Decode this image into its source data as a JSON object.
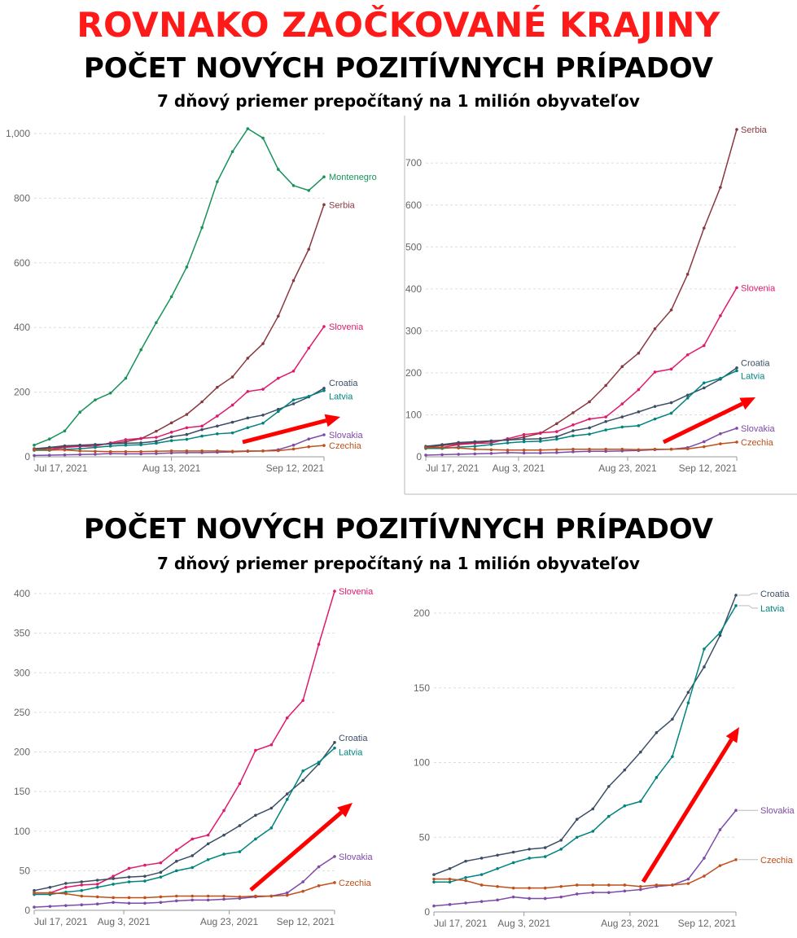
{
  "header": {
    "title_red": "ROVNAKO ZAOČKOVANÉ KRAJINY",
    "title": "POČET NOVÝCH POZITÍVNYCH PRÍPADOV",
    "subtitle": "7 dňový priemer prepočítaný na 1 milión obyvateľov"
  },
  "section2": {
    "title": "POČET NOVÝCH POZITÍVNYCH PRÍPADOV",
    "subtitle": "7 dňový priemer prepočítaný na 1 milión obyvateľov"
  },
  "colors": {
    "Montenegro": "#18925a",
    "Serbia": "#8a3840",
    "Slovenia": "#e0196c",
    "Croatia": "#3c4e66",
    "Latvia": "#00847e",
    "Slovakia": "#7d4aa8",
    "Czechia": "#c0501a",
    "arrow": "#ff0000",
    "grid": "#dddddd",
    "axis_text": "#666666"
  },
  "chart_data": [
    {
      "type": "line",
      "ylim": [
        0,
        1000
      ],
      "yticks": [
        0,
        200,
        400,
        600,
        800,
        1000
      ],
      "ytick_labels": [
        "0",
        "200",
        "400",
        "600",
        "800",
        "1,000"
      ],
      "xticks": [
        "2021-07-17",
        "2021-08-13",
        "2021-09-12"
      ],
      "xtick_labels": [
        "Jul 17, 2021",
        "Aug 13, 2021",
        "Sep 12, 2021"
      ],
      "grid": true,
      "legend": "line-end labels",
      "x": [
        "2021-07-17",
        "2021-07-20",
        "2021-07-23",
        "2021-07-26",
        "2021-07-29",
        "2021-08-01",
        "2021-08-04",
        "2021-08-07",
        "2021-08-10",
        "2021-08-13",
        "2021-08-16",
        "2021-08-19",
        "2021-08-22",
        "2021-08-25",
        "2021-08-28",
        "2021-08-31",
        "2021-09-03",
        "2021-09-06",
        "2021-09-09",
        "2021-09-12"
      ],
      "series": [
        {
          "name": "Montenegro",
          "values": [
            36,
            55,
            80,
            138,
            176,
            197,
            243,
            331,
            415,
            495,
            587,
            709,
            851,
            944,
            1015,
            986,
            889,
            839,
            824,
            866
          ]
        },
        {
          "name": "Serbia",
          "values": [
            22,
            27,
            31,
            34,
            37,
            40,
            47,
            56,
            79,
            105,
            131,
            170,
            215,
            247,
            305,
            350,
            435,
            545,
            642,
            780
          ]
        },
        {
          "name": "Slovenia",
          "values": [
            22,
            22,
            29,
            32,
            33,
            43,
            53,
            57,
            60,
            76,
            90,
            95,
            126,
            160,
            202,
            209,
            243,
            265,
            336,
            403
          ]
        },
        {
          "name": "Croatia",
          "values": [
            25,
            29,
            34,
            36,
            38,
            40,
            42,
            43,
            48,
            62,
            69,
            84,
            95,
            107,
            120,
            129,
            147,
            164,
            185,
            212
          ]
        },
        {
          "name": "Latvia",
          "values": [
            20,
            20,
            23,
            25,
            29,
            33,
            36,
            37,
            42,
            50,
            54,
            64,
            71,
            74,
            90,
            104,
            140,
            176,
            187,
            205
          ]
        },
        {
          "name": "Slovakia",
          "values": [
            4,
            5,
            6,
            7,
            8,
            10,
            9,
            9,
            10,
            12,
            13,
            13,
            14,
            15,
            17,
            18,
            22,
            36,
            55,
            68
          ]
        },
        {
          "name": "Czechia",
          "values": [
            22,
            22,
            21,
            18,
            17,
            16,
            16,
            16,
            17,
            18,
            18,
            18,
            18,
            17,
            18,
            18,
            19,
            24,
            31,
            35
          ]
        }
      ]
    },
    {
      "type": "line",
      "ylim": [
        0,
        780
      ],
      "yticks": [
        0,
        100,
        200,
        300,
        400,
        500,
        600,
        700
      ],
      "ytick_labels": [
        "0",
        "100",
        "200",
        "300",
        "400",
        "500",
        "600",
        "700"
      ],
      "xticks": [
        "2021-07-17",
        "2021-08-03",
        "2021-08-23",
        "2021-09-12"
      ],
      "xtick_labels": [
        "Jul 17, 2021",
        "Aug 3, 2021",
        "Aug 23, 2021",
        "Sep 12, 2021"
      ],
      "grid": true,
      "legend": "line-end labels",
      "x": [
        "2021-07-17",
        "2021-07-20",
        "2021-07-23",
        "2021-07-26",
        "2021-07-29",
        "2021-08-01",
        "2021-08-04",
        "2021-08-07",
        "2021-08-10",
        "2021-08-13",
        "2021-08-16",
        "2021-08-19",
        "2021-08-22",
        "2021-08-25",
        "2021-08-28",
        "2021-08-31",
        "2021-09-03",
        "2021-09-06",
        "2021-09-09",
        "2021-09-12"
      ],
      "series": [
        {
          "name": "Serbia",
          "values": [
            22,
            27,
            31,
            34,
            37,
            40,
            47,
            56,
            79,
            105,
            131,
            170,
            215,
            247,
            305,
            350,
            435,
            545,
            642,
            780
          ]
        },
        {
          "name": "Slovenia",
          "values": [
            22,
            22,
            29,
            32,
            33,
            43,
            53,
            57,
            60,
            76,
            90,
            95,
            126,
            160,
            202,
            209,
            243,
            265,
            336,
            403
          ]
        },
        {
          "name": "Croatia",
          "values": [
            25,
            29,
            34,
            36,
            38,
            40,
            42,
            43,
            48,
            62,
            69,
            84,
            95,
            107,
            120,
            129,
            147,
            164,
            185,
            212
          ]
        },
        {
          "name": "Latvia",
          "values": [
            20,
            20,
            23,
            25,
            29,
            33,
            36,
            37,
            42,
            50,
            54,
            64,
            71,
            74,
            90,
            104,
            140,
            176,
            187,
            205
          ]
        },
        {
          "name": "Slovakia",
          "values": [
            4,
            5,
            6,
            7,
            8,
            10,
            9,
            9,
            10,
            12,
            13,
            13,
            14,
            15,
            17,
            18,
            22,
            36,
            55,
            68
          ]
        },
        {
          "name": "Czechia",
          "values": [
            22,
            22,
            21,
            18,
            17,
            16,
            16,
            16,
            17,
            18,
            18,
            18,
            18,
            17,
            18,
            18,
            19,
            24,
            31,
            35
          ]
        }
      ]
    },
    {
      "type": "line",
      "ylim": [
        0,
        400
      ],
      "yticks": [
        0,
        50,
        100,
        150,
        200,
        250,
        300,
        350,
        400
      ],
      "ytick_labels": [
        "0",
        "50",
        "100",
        "150",
        "200",
        "250",
        "300",
        "350",
        "400"
      ],
      "xticks": [
        "2021-07-17",
        "2021-08-03",
        "2021-08-23",
        "2021-09-12"
      ],
      "xtick_labels": [
        "Jul 17, 2021",
        "Aug 3, 2021",
        "Aug 23, 2021",
        "Sep 12, 2021"
      ],
      "grid": true,
      "legend": "line-end labels",
      "x": [
        "2021-07-17",
        "2021-07-20",
        "2021-07-23",
        "2021-07-26",
        "2021-07-29",
        "2021-08-01",
        "2021-08-04",
        "2021-08-07",
        "2021-08-10",
        "2021-08-13",
        "2021-08-16",
        "2021-08-19",
        "2021-08-22",
        "2021-08-25",
        "2021-08-28",
        "2021-08-31",
        "2021-09-03",
        "2021-09-06",
        "2021-09-09",
        "2021-09-12"
      ],
      "series": [
        {
          "name": "Slovenia",
          "values": [
            22,
            22,
            29,
            32,
            33,
            43,
            53,
            57,
            60,
            76,
            90,
            95,
            126,
            160,
            202,
            209,
            243,
            265,
            336,
            403
          ]
        },
        {
          "name": "Croatia",
          "values": [
            25,
            29,
            34,
            36,
            38,
            40,
            42,
            43,
            48,
            62,
            69,
            84,
            95,
            107,
            120,
            129,
            147,
            164,
            185,
            212
          ]
        },
        {
          "name": "Latvia",
          "values": [
            20,
            20,
            23,
            25,
            29,
            33,
            36,
            37,
            42,
            50,
            54,
            64,
            71,
            74,
            90,
            104,
            140,
            176,
            187,
            205
          ]
        },
        {
          "name": "Slovakia",
          "values": [
            4,
            5,
            6,
            7,
            8,
            10,
            9,
            9,
            10,
            12,
            13,
            13,
            14,
            15,
            17,
            18,
            22,
            36,
            55,
            68
          ]
        },
        {
          "name": "Czechia",
          "values": [
            22,
            22,
            21,
            18,
            17,
            16,
            16,
            16,
            17,
            18,
            18,
            18,
            18,
            17,
            18,
            18,
            19,
            24,
            31,
            35
          ]
        }
      ]
    },
    {
      "type": "line",
      "ylim": [
        0,
        212
      ],
      "yticks": [
        0,
        50,
        100,
        150,
        200
      ],
      "ytick_labels": [
        "0",
        "50",
        "100",
        "150",
        "200"
      ],
      "xticks": [
        "2021-07-17",
        "2021-08-03",
        "2021-08-23",
        "2021-09-12"
      ],
      "xtick_labels": [
        "Jul 17, 2021",
        "Aug 3, 2021",
        "Aug 23, 2021",
        "Sep 12, 2021"
      ],
      "grid": true,
      "legend": "line-end labels with leader lines",
      "x": [
        "2021-07-17",
        "2021-07-20",
        "2021-07-23",
        "2021-07-26",
        "2021-07-29",
        "2021-08-01",
        "2021-08-04",
        "2021-08-07",
        "2021-08-10",
        "2021-08-13",
        "2021-08-16",
        "2021-08-19",
        "2021-08-22",
        "2021-08-25",
        "2021-08-28",
        "2021-08-31",
        "2021-09-03",
        "2021-09-06",
        "2021-09-09",
        "2021-09-12"
      ],
      "series": [
        {
          "name": "Croatia",
          "values": [
            25,
            29,
            34,
            36,
            38,
            40,
            42,
            43,
            48,
            62,
            69,
            84,
            95,
            107,
            120,
            129,
            147,
            164,
            185,
            212
          ]
        },
        {
          "name": "Latvia",
          "values": [
            20,
            20,
            23,
            25,
            29,
            33,
            36,
            37,
            42,
            50,
            54,
            64,
            71,
            74,
            90,
            104,
            140,
            176,
            187,
            205
          ]
        },
        {
          "name": "Slovakia",
          "values": [
            4,
            5,
            6,
            7,
            8,
            10,
            9,
            9,
            10,
            12,
            13,
            13,
            14,
            15,
            17,
            18,
            22,
            36,
            55,
            68
          ]
        },
        {
          "name": "Czechia",
          "values": [
            22,
            22,
            21,
            18,
            17,
            16,
            16,
            16,
            17,
            18,
            18,
            18,
            18,
            17,
            18,
            18,
            19,
            24,
            31,
            35
          ]
        }
      ]
    }
  ]
}
